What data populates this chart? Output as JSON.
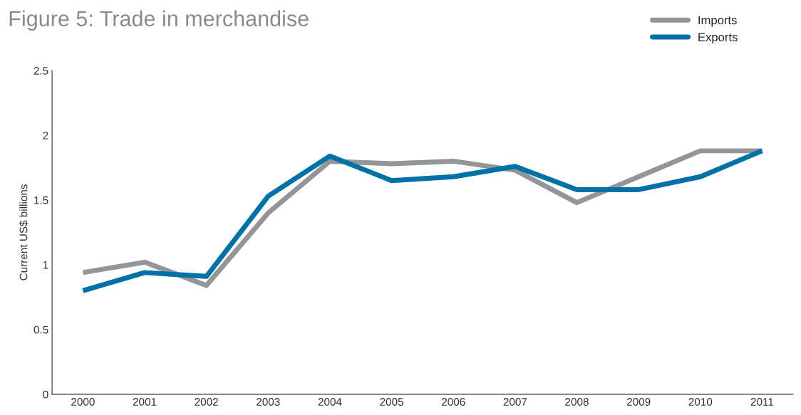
{
  "chart_data": {
    "type": "line",
    "title": "Figure 5: Trade in merchandise",
    "ylabel": "Current US$ billions",
    "categories": [
      "2000",
      "2001",
      "2002",
      "2003",
      "2004",
      "2005",
      "2006",
      "2007",
      "2008",
      "2009",
      "2010",
      "2011"
    ],
    "series": [
      {
        "name": "Imports",
        "color": "#939598",
        "values": [
          0.94,
          1.02,
          0.84,
          1.4,
          1.8,
          1.78,
          1.8,
          1.73,
          1.48,
          1.68,
          1.88,
          1.88
        ]
      },
      {
        "name": "Exports",
        "color": "#0071a6",
        "values": [
          0.8,
          0.94,
          0.91,
          1.53,
          1.84,
          1.65,
          1.68,
          1.76,
          1.58,
          1.58,
          1.68,
          1.88
        ]
      }
    ],
    "ylim": [
      0,
      2.5
    ],
    "yticks": [
      0,
      0.5,
      1,
      1.5,
      2,
      2.5
    ],
    "grid": false,
    "legend": "top right",
    "marker": "none",
    "line_style": "solid"
  }
}
